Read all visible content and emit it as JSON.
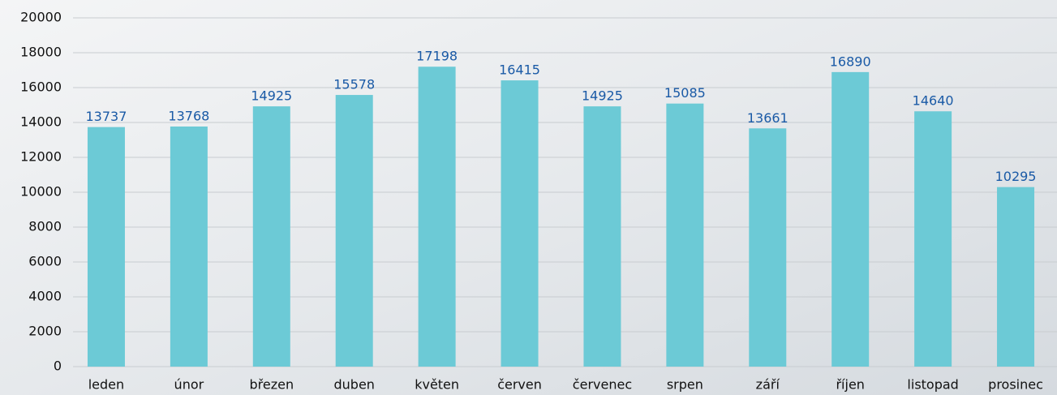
{
  "chart_data": {
    "type": "bar",
    "categories": [
      "leden",
      "únor",
      "březen",
      "duben",
      "květen",
      "červen",
      "červenec",
      "srpen",
      "září",
      "říjen",
      "listopad",
      "prosinec"
    ],
    "values": [
      13737,
      13768,
      14925,
      15578,
      17198,
      16415,
      14925,
      15085,
      13661,
      16890,
      14640,
      10295
    ],
    "color": "#6ccad6",
    "label_color": "#1a5aa6",
    "ylim": [
      0,
      20000
    ],
    "yticks": [
      0,
      2000,
      4000,
      6000,
      8000,
      10000,
      12000,
      14000,
      16000,
      18000,
      20000
    ],
    "grid": true
  }
}
